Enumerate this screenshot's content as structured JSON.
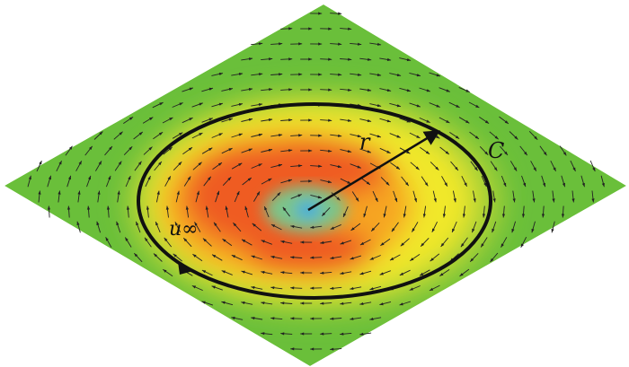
{
  "labels": {
    "radius": "r",
    "contour": "C",
    "velocity": "u∞"
  },
  "colors": {
    "outer_field": "#6abf3a",
    "light_green": "#a9d236",
    "yellow": "#f1e82c",
    "orange": "#f6a623",
    "red_orange": "#ef5b21",
    "core_green": "#7cc58a",
    "center_blue": "#35a8e6",
    "contour_stroke": "#111111",
    "vector_color": "#222222"
  },
  "icons": {
    "radius_arrow": "arrow-icon",
    "circulation_arrow": "arrowhead-icon"
  }
}
